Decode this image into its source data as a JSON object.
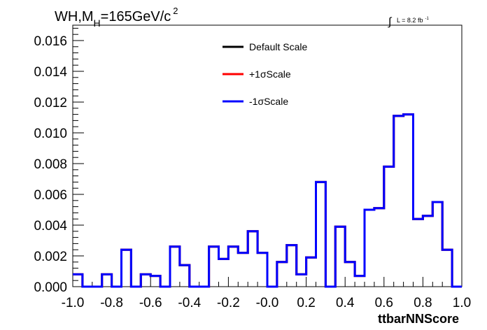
{
  "header": {
    "title_main": "WH,M",
    "title_sub": "H",
    "title_tail": "=165GeV/c",
    "title_sup": "2",
    "lumi_integral": "∫",
    "lumi_text": "L = 8.2 fb",
    "lumi_sup": "-1"
  },
  "chart_data": {
    "type": "line",
    "style": "step-histogram",
    "xlabel": "ttbarNNScore",
    "ylabel": "",
    "xlim": [
      -1.0,
      1.0
    ],
    "ylim": [
      0,
      0.017
    ],
    "x_ticks": [
      -1.0,
      -0.8,
      -0.6,
      -0.4,
      -0.2,
      0.0,
      0.2,
      0.4,
      0.6,
      0.8,
      1.0
    ],
    "x_tick_labels": [
      "-1.0",
      "-0.8",
      "-0.6",
      "-0.4",
      "-0.2",
      "-0.0",
      "0.2",
      "0.4",
      "0.6",
      "0.8",
      "1.0"
    ],
    "y_ticks": [
      0,
      0.002,
      0.004,
      0.006,
      0.008,
      0.01,
      0.012,
      0.014,
      0.016
    ],
    "y_tick_labels": [
      "0.000",
      "0.002",
      "0.004",
      "0.006",
      "0.008",
      "0.010",
      "0.012",
      "0.014",
      "0.016"
    ],
    "bin_edges": [
      -1.0,
      -0.95,
      -0.9,
      -0.85,
      -0.8,
      -0.75,
      -0.7,
      -0.65,
      -0.6,
      -0.55,
      -0.5,
      -0.45,
      -0.4,
      -0.35,
      -0.3,
      -0.25,
      -0.2,
      -0.15,
      -0.1,
      -0.05,
      0.0,
      0.05,
      0.1,
      0.15,
      0.2,
      0.25,
      0.3,
      0.35,
      0.4,
      0.45,
      0.5,
      0.55,
      0.6,
      0.65,
      0.7,
      0.75,
      0.8,
      0.85,
      0.9,
      0.95,
      1.0
    ],
    "series": [
      {
        "name": "Default Scale",
        "color": "#000000",
        "values": [
          0.0008,
          0.0,
          0.0,
          0.0008,
          0.0,
          0.0024,
          0.0,
          0.0008,
          0.0007,
          0.0,
          0.0026,
          0.0014,
          0.0,
          0.0,
          0.0026,
          0.0018,
          0.0026,
          0.0022,
          0.0036,
          0.0022,
          0.0,
          0.0016,
          0.0027,
          0.0008,
          0.0019,
          0.0068,
          0.0,
          0.0039,
          0.0016,
          0.0007,
          0.005,
          0.0051,
          0.0078,
          0.0111,
          0.0112,
          0.0044,
          0.0046,
          0.0055,
          0.0024,
          0.0
        ]
      },
      {
        "name": "+1σScale",
        "color": "#ff0000",
        "values": [
          0.0008,
          0.0,
          0.0,
          0.0008,
          0.0,
          0.0024,
          0.0,
          0.0008,
          0.0007,
          0.0,
          0.0026,
          0.0014,
          0.0,
          0.0,
          0.0026,
          0.0018,
          0.0026,
          0.0022,
          0.0036,
          0.0022,
          0.0,
          0.0016,
          0.0027,
          0.0008,
          0.0019,
          0.0068,
          0.0,
          0.0039,
          0.0016,
          0.0007,
          0.005,
          0.0051,
          0.0078,
          0.0111,
          0.0112,
          0.0044,
          0.0046,
          0.0055,
          0.0024,
          0.0
        ]
      },
      {
        "name": "-1σScale",
        "color": "#0000ff",
        "values": [
          0.0008,
          0.0,
          0.0,
          0.0008,
          0.0,
          0.0024,
          0.0,
          0.0008,
          0.0007,
          0.0,
          0.0026,
          0.0014,
          0.0,
          0.0,
          0.0026,
          0.0018,
          0.0026,
          0.0022,
          0.0036,
          0.0022,
          0.0,
          0.0016,
          0.0027,
          0.0008,
          0.0019,
          0.0068,
          0.0,
          0.0039,
          0.0016,
          0.0007,
          0.005,
          0.0051,
          0.0078,
          0.0111,
          0.0112,
          0.0044,
          0.0046,
          0.0055,
          0.0024,
          0.0
        ]
      }
    ],
    "legend": {
      "placement": "top-center"
    },
    "grid": false
  }
}
